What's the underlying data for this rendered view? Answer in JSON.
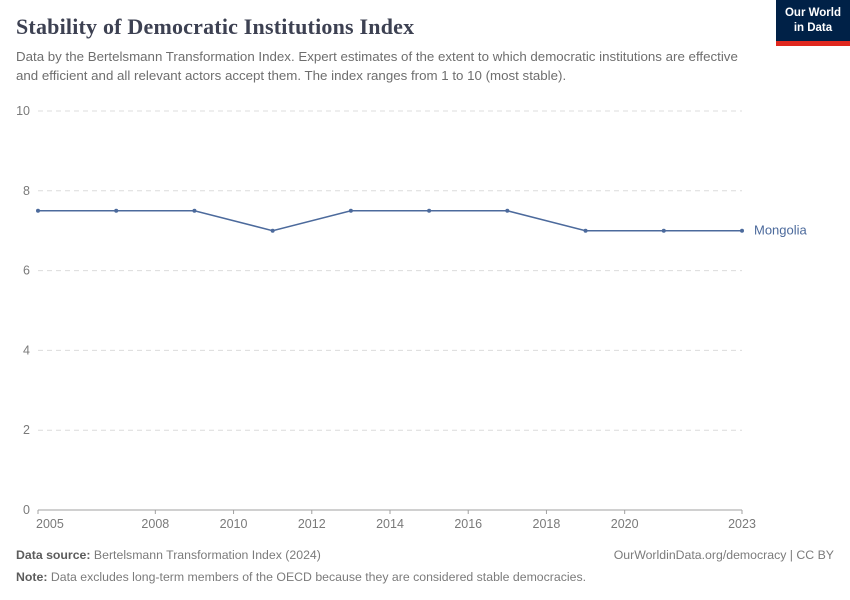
{
  "header": {
    "title": "Stability of Democratic Institutions Index",
    "subtitle": "Data by the Bertelsmann Transformation Index. Expert estimates of the extent to which democratic institutions are effective and efficient and all relevant actors accept them. The index ranges from 1 to 10 (most stable).",
    "logo": {
      "line1": "Our World",
      "line2": "in Data"
    }
  },
  "footer": {
    "source_label": "Data source:",
    "source_text": "Bertelsmann Transformation Index (2024)",
    "right_text": "OurWorldinData.org/democracy | CC BY",
    "note_label": "Note:",
    "note_text": "Data excludes long-term members of the OECD because they are considered stable democracies."
  },
  "colors": {
    "line": "#4c6a9c",
    "title": "#3d4152",
    "logo_bg": "#002147",
    "logo_accent": "#e0281e",
    "gridline": "#dcdcdc",
    "axis": "#a0a0a0",
    "tick_text": "#7a7a7a"
  },
  "chart_data": {
    "type": "line",
    "title": "Stability of Democratic Institutions Index",
    "xlabel": "",
    "ylabel": "",
    "xlim": [
      2005,
      2023
    ],
    "ylim": [
      0,
      10
    ],
    "xticks": [
      2005,
      2008,
      2010,
      2012,
      2014,
      2016,
      2018,
      2020,
      2023
    ],
    "yticks": [
      0,
      2,
      4,
      6,
      8,
      10
    ],
    "grid": "horizontal-dashed",
    "legend_position": "end-of-line-label",
    "series": [
      {
        "name": "Mongolia",
        "x": [
          2005,
          2007,
          2009,
          2011,
          2013,
          2015,
          2017,
          2019,
          2021,
          2023
        ],
        "values": [
          7.5,
          7.5,
          7.5,
          7.0,
          7.5,
          7.5,
          7.5,
          7.0,
          7.0,
          7.0
        ]
      }
    ]
  }
}
